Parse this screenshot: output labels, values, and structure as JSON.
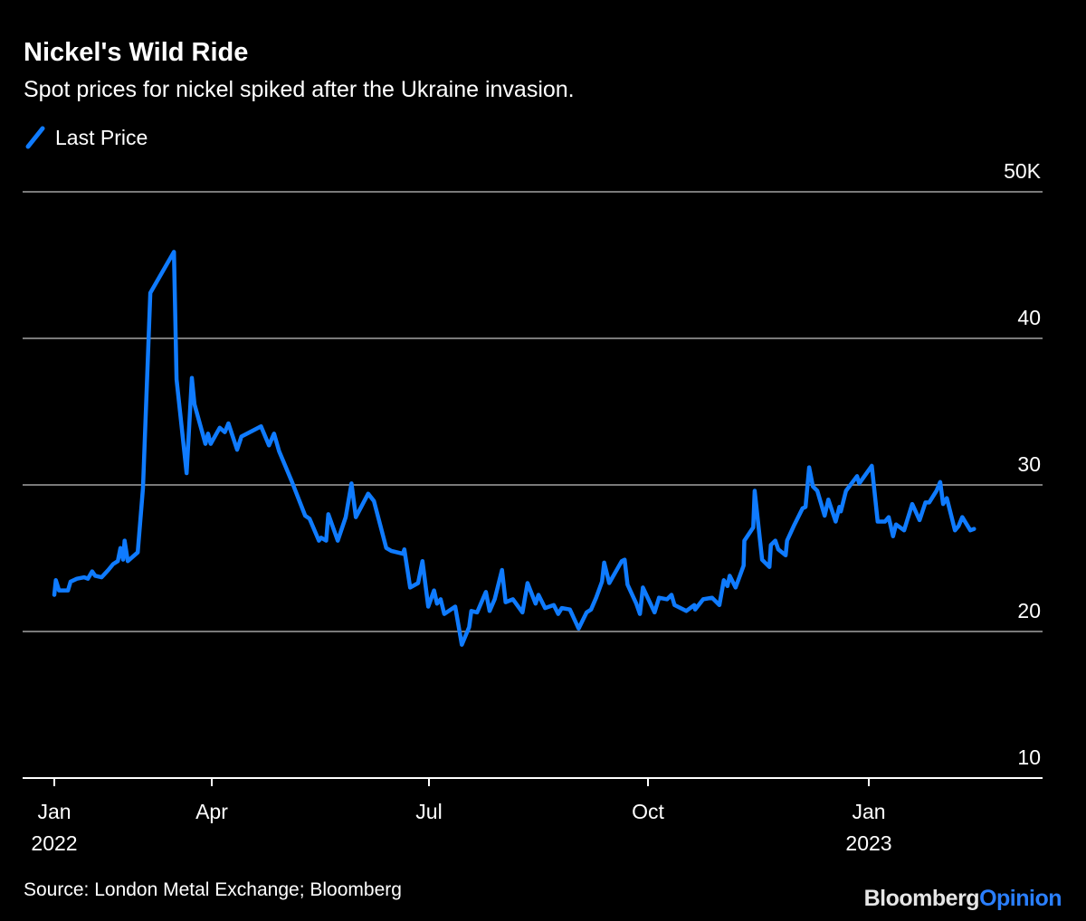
{
  "header": {
    "title": "Nickel's Wild Ride",
    "subtitle": "Spot prices for nickel spiked after the Ukraine invasion."
  },
  "footer": {
    "source": "Source: London Metal Exchange; Bloomberg",
    "logo_part1": "Bloomberg",
    "logo_part2": "Opinion"
  },
  "colors": {
    "line": "#0f7bff",
    "grid": "#7a7a7a",
    "axis": "#ffffff",
    "logo_accent": "#2a7fff"
  },
  "chart_data": {
    "type": "line",
    "title": "Nickel's Wild Ride",
    "subtitle": "Spot prices for nickel spiked after the Ukraine invasion.",
    "xlabel": "",
    "ylabel": "",
    "x_unit": "months since Jan 2022",
    "ylim": [
      10,
      50
    ],
    "grid": true,
    "legend_position": "top-left",
    "y_ticks": [
      {
        "value": 50,
        "label": "50K"
      },
      {
        "value": 40,
        "label": "40"
      },
      {
        "value": 30,
        "label": "30"
      },
      {
        "value": 20,
        "label": "20"
      },
      {
        "value": 10,
        "label": "10"
      }
    ],
    "x_ticks": [
      {
        "value": 0,
        "label": "Jan",
        "year": "2022"
      },
      {
        "value": 3,
        "label": "Apr",
        "year": ""
      },
      {
        "value": 6,
        "label": "Jul",
        "year": ""
      },
      {
        "value": 9,
        "label": "Oct",
        "year": ""
      },
      {
        "value": 12,
        "label": "Jan",
        "year": "2023"
      }
    ],
    "series": [
      {
        "name": "Last Price",
        "x": [
          0,
          0.03,
          0.09,
          0.26,
          0.31,
          0.43,
          0.57,
          0.64,
          0.72,
          0.78,
          0.9,
          1.03,
          1.12,
          1.21,
          1.26,
          1.31,
          1.34,
          1.4,
          1.59,
          1.69,
          1.83,
          2.28,
          2.33,
          2.52,
          2.62,
          2.67,
          2.88,
          2.93,
          2.98,
          3.11,
          3.18,
          3.23,
          3.35,
          3.41,
          3.68,
          3.79,
          3.86,
          3.93,
          4.1,
          4.29,
          4.35,
          4.48,
          4.51,
          4.58,
          4.61,
          4.74,
          4.85,
          4.93,
          4.99,
          5.16,
          5.24,
          5.41,
          5.48,
          5.64,
          5.66,
          5.74,
          5.85,
          5.91,
          5.99,
          6.07,
          6.11,
          6.16,
          6.21,
          6.36,
          6.45,
          6.55,
          6.58,
          6.66,
          6.78,
          6.83,
          6.9,
          7.0,
          7.05,
          7.15,
          7.28,
          7.35,
          7.46,
          7.5,
          7.59,
          7.71,
          7.77,
          7.82,
          7.93,
          8.05,
          8.16,
          8.22,
          8.29,
          8.37,
          8.4,
          8.47,
          8.64,
          8.68,
          8.72,
          8.84,
          8.89,
          8.93,
          9.09,
          9.15,
          9.26,
          9.32,
          9.36,
          9.52,
          9.63,
          9.64,
          9.75,
          9.87,
          9.97,
          10.03,
          10.08,
          10.11,
          10.19,
          10.3,
          10.31,
          10.43,
          10.45,
          10.55,
          10.65,
          10.67,
          10.73,
          10.77,
          10.87,
          10.89,
          10.99,
          11.1,
          11.14,
          11.19,
          11.24,
          11.3,
          11.4,
          11.45,
          11.55,
          11.6,
          11.62,
          11.69,
          11.84,
          11.87,
          12.04,
          12.12,
          12.22,
          12.27,
          12.33,
          12.37,
          12.48,
          12.59,
          12.69,
          12.77,
          12.82,
          12.92,
          12.97,
          13.01,
          13.06,
          13.17,
          13.22,
          13.27,
          13.38,
          13.43
        ],
        "y": [
          22.5,
          23.5,
          22.8,
          22.8,
          23.4,
          23.6,
          23.7,
          23.6,
          24.1,
          23.8,
          23.7,
          24.2,
          24.6,
          24.8,
          25.7,
          24.9,
          26.2,
          24.8,
          25.4,
          29.8,
          43.1,
          45.9,
          37.2,
          30.8,
          37.3,
          35.5,
          32.8,
          33.5,
          32.8,
          33.9,
          33.6,
          34.2,
          32.4,
          33.3,
          34.0,
          32.7,
          33.5,
          32.3,
          30.3,
          27.9,
          27.7,
          26.2,
          26.4,
          26.2,
          28.0,
          26.2,
          27.8,
          30.1,
          27.8,
          29.4,
          28.9,
          25.7,
          25.5,
          25.3,
          25.6,
          23.0,
          23.3,
          24.8,
          21.7,
          22.8,
          21.9,
          22.2,
          21.2,
          21.7,
          19.1,
          20.3,
          21.4,
          21.3,
          22.7,
          21.4,
          22.2,
          24.2,
          22.0,
          22.2,
          21.3,
          23.3,
          21.9,
          22.5,
          21.6,
          21.8,
          21.2,
          21.6,
          21.5,
          20.2,
          21.3,
          21.5,
          22.3,
          23.4,
          24.7,
          23.3,
          24.8,
          24.9,
          23.2,
          21.9,
          21.2,
          23.0,
          21.3,
          22.3,
          22.2,
          22.5,
          21.8,
          21.4,
          21.8,
          21.5,
          22.2,
          22.3,
          21.8,
          23.5,
          23.1,
          23.8,
          23.0,
          24.5,
          26.2,
          27.1,
          29.6,
          24.9,
          24.4,
          25.9,
          26.2,
          25.6,
          25.2,
          26.2,
          27.3,
          28.4,
          28.5,
          31.2,
          29.9,
          29.6,
          27.9,
          29.0,
          27.5,
          28.5,
          28.2,
          29.6,
          30.6,
          30.1,
          31.3,
          27.5,
          27.5,
          27.8,
          26.5,
          27.3,
          26.9,
          28.7,
          27.6,
          28.8,
          28.8,
          29.6,
          30.2,
          28.7,
          29.1,
          26.9,
          27.2,
          27.8,
          26.9,
          27.0
        ]
      }
    ]
  }
}
